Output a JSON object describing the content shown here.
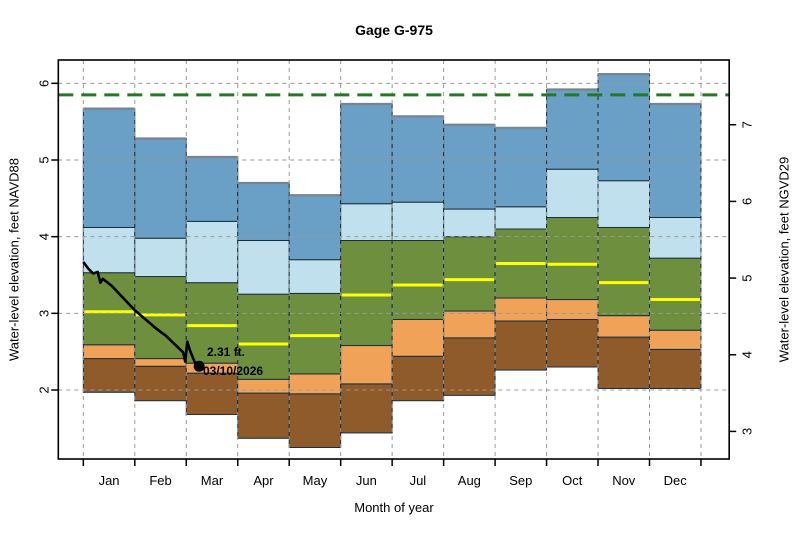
{
  "title": "Gage G-975",
  "axes": {
    "left_label": "Water-level elevation, feet NAVD88",
    "right_label": "Water-level elevation, feet NGVD29",
    "x_label": "Month of year",
    "left_ticks": [
      2,
      3,
      4,
      5,
      6
    ],
    "right_ticks": [
      3,
      4,
      5,
      6,
      7
    ],
    "right_datum_offset": 1.54
  },
  "annotation": {
    "line1": "2.31 ft.",
    "line2": "03/10/2026"
  },
  "chart_data": {
    "type": "area",
    "subtype": "monthly-percentile-duration-hydrograph",
    "categories": [
      "Jan",
      "Feb",
      "Mar",
      "Apr",
      "May",
      "Jun",
      "Jul",
      "Aug",
      "Sep",
      "Oct",
      "Nov",
      "Dec"
    ],
    "ylabel": "Water-level elevation, feet NAVD88",
    "ylabel_right": "Water-level elevation, feet NGVD29",
    "xlabel": "Month of year",
    "ylim": [
      1.1,
      6.3
    ],
    "grid": "dashed",
    "series": [
      {
        "name": "min",
        "values": [
          1.97,
          1.86,
          1.68,
          1.37,
          1.25,
          1.44,
          1.86,
          1.93,
          2.26,
          2.3,
          2.02,
          2.02
        ]
      },
      {
        "name": "p10",
        "values": [
          2.41,
          2.31,
          2.22,
          1.96,
          1.95,
          2.08,
          2.44,
          2.68,
          2.9,
          2.92,
          2.69,
          2.53
        ]
      },
      {
        "name": "p25",
        "values": [
          2.59,
          2.41,
          2.35,
          2.14,
          2.21,
          2.58,
          2.92,
          3.03,
          3.2,
          3.18,
          2.97,
          2.78
        ]
      },
      {
        "name": "median",
        "values": [
          3.02,
          2.98,
          2.84,
          2.6,
          2.71,
          3.24,
          3.37,
          3.44,
          3.65,
          3.64,
          3.4,
          3.18
        ]
      },
      {
        "name": "p75",
        "values": [
          3.53,
          3.48,
          3.4,
          3.25,
          3.26,
          3.95,
          3.95,
          4.0,
          4.1,
          4.25,
          4.12,
          3.72
        ]
      },
      {
        "name": "p90",
        "values": [
          4.12,
          3.98,
          4.2,
          3.95,
          3.7,
          4.43,
          4.45,
          4.36,
          4.39,
          4.88,
          4.73,
          4.25
        ]
      },
      {
        "name": "max",
        "values": [
          5.67,
          5.28,
          5.04,
          4.7,
          4.54,
          5.73,
          5.57,
          5.46,
          5.42,
          5.92,
          6.12,
          5.73
        ]
      }
    ],
    "bands": [
      {
        "from": "min",
        "to": "p10",
        "color": "#8F5B2A",
        "name": "band-min-p10"
      },
      {
        "from": "p10",
        "to": "p25",
        "color": "#F0A259",
        "name": "band-p10-p25"
      },
      {
        "from": "p25",
        "to": "p75",
        "color": "#6E8F3E",
        "name": "band-p25-p75"
      },
      {
        "from": "p75",
        "to": "p90",
        "color": "#BFE0EC",
        "name": "band-p75-p90"
      },
      {
        "from": "p90",
        "to": "max",
        "color": "#6A9FC6",
        "name": "band-p90-max"
      }
    ],
    "median_line_color": "#FFFF00",
    "band_edge_color": "#17303F",
    "band_top_color": "#77848E",
    "grid_color": "#999999",
    "reference_line": {
      "value": 5.85,
      "color": "#1F7D1F",
      "style": "dashed"
    },
    "current_line": {
      "color": "#000000",
      "points": [
        [
          0.0,
          3.67
        ],
        [
          0.1,
          3.58
        ],
        [
          0.19,
          3.52
        ],
        [
          0.28,
          3.54
        ],
        [
          0.33,
          3.4
        ],
        [
          0.38,
          3.45
        ],
        [
          0.55,
          3.36
        ],
        [
          1.0,
          3.04
        ],
        [
          1.4,
          2.81
        ],
        [
          1.6,
          2.71
        ],
        [
          1.94,
          2.49
        ],
        [
          1.98,
          2.37
        ],
        [
          2.02,
          2.63
        ],
        [
          2.07,
          2.52
        ],
        [
          2.16,
          2.37
        ],
        [
          2.25,
          2.31
        ]
      ]
    },
    "annotation": {
      "dot": {
        "month_fraction": 2.25,
        "value": 2.31
      },
      "label_value": "2.31 ft.",
      "label_date": "03/10/2026"
    },
    "title": "Gage G-975"
  }
}
